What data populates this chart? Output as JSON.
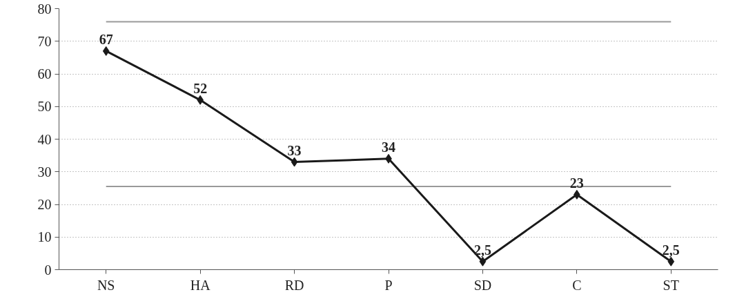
{
  "chart_data": {
    "type": "line",
    "categories": [
      "NS",
      "HA",
      "RD",
      "P",
      "SD",
      "C",
      "ST"
    ],
    "series": [
      {
        "color": "#1a1a1a",
        "values": [
          67,
          52,
          33,
          34,
          2.5,
          23,
          2.5
        ],
        "value_labels": [
          "67",
          "52",
          "33",
          "34",
          "2,5",
          "23",
          "2,5"
        ]
      }
    ],
    "ylim": [
      0,
      80
    ],
    "yticks": [
      0,
      10,
      20,
      30,
      40,
      50,
      60,
      70,
      80
    ],
    "grid": "y",
    "marker": "diamond",
    "line_style": "solid",
    "ref_lines": [
      {
        "axis": "y",
        "value": 76,
        "color": "#999999"
      },
      {
        "axis": "y",
        "value": 25.5,
        "color": "#999999"
      }
    ]
  }
}
